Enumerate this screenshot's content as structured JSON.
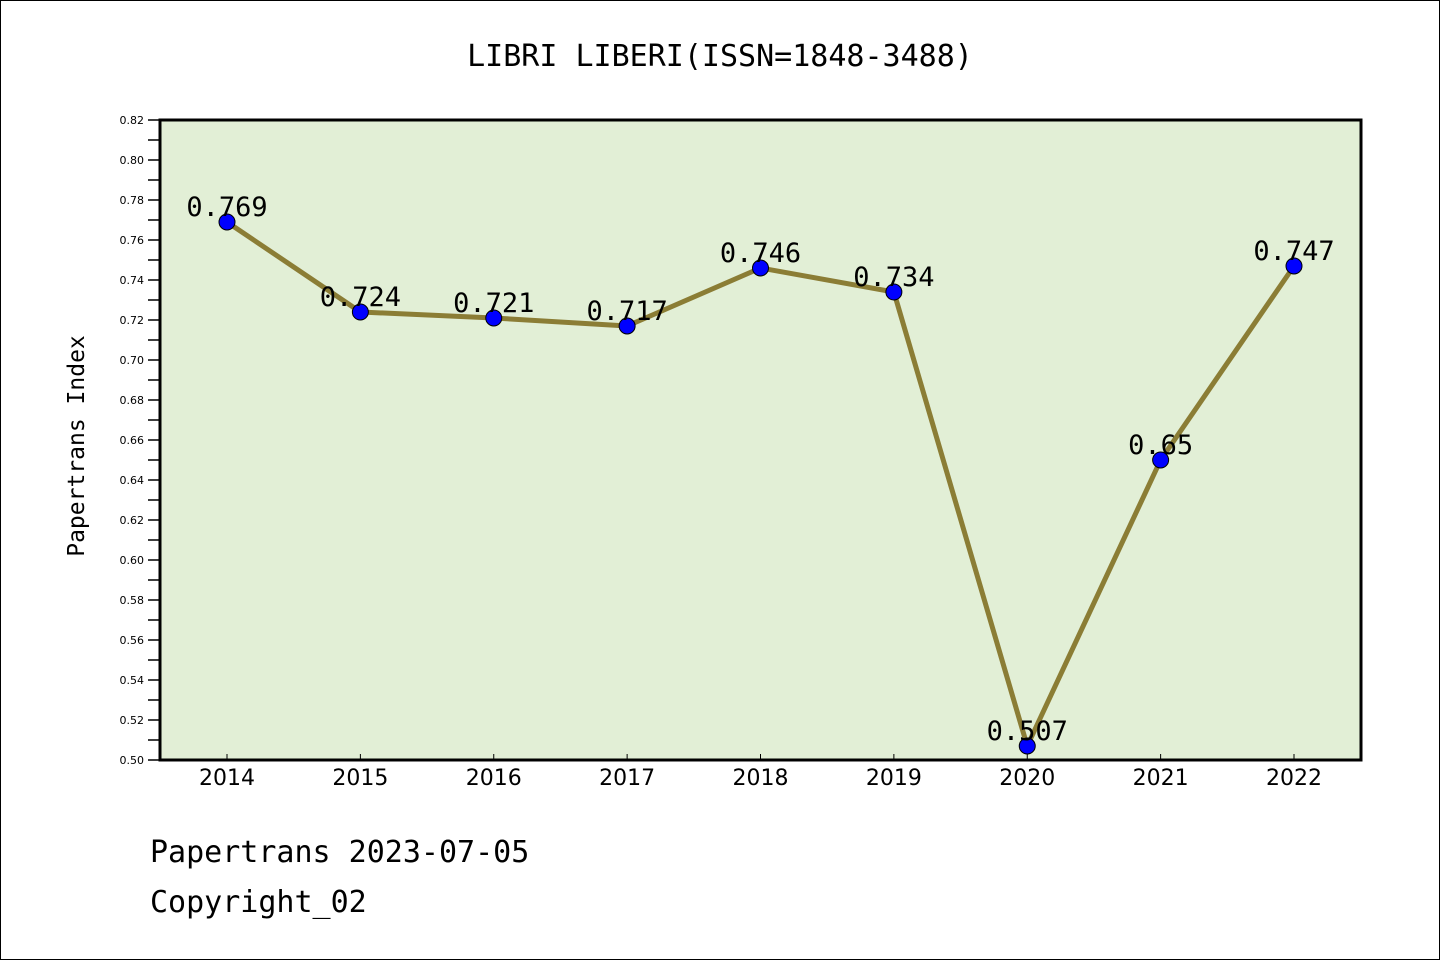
{
  "chart_data": {
    "type": "line",
    "title": "LIBRI LIBERI(ISSN=1848-3488)",
    "xlabel": "",
    "ylabel": "Papertrans Index",
    "categories": [
      "2014",
      "2015",
      "2016",
      "2017",
      "2018",
      "2019",
      "2020",
      "2021",
      "2022"
    ],
    "values": [
      0.769,
      0.724,
      0.721,
      0.717,
      0.746,
      0.734,
      0.507,
      0.65,
      0.747
    ],
    "data_labels": [
      "0.769",
      "0.724",
      "0.721",
      "0.717",
      "0.746",
      "0.734",
      "0.507",
      "0.65",
      "0.747"
    ],
    "ylim": [
      0.5,
      0.82
    ],
    "yticks": [
      "0.50",
      "0.52",
      "0.54",
      "0.56",
      "0.58",
      "0.60",
      "0.62",
      "0.64",
      "0.66",
      "0.68",
      "0.70",
      "0.72",
      "0.74",
      "0.76",
      "0.78",
      "0.80",
      "0.82"
    ],
    "grid": false,
    "colors": {
      "background": "#e2efd6",
      "line": "#8b7d35",
      "marker": "#0000ff"
    }
  },
  "footer": {
    "line1": "Papertrans 2023-07-05",
    "line2": "Copyright_02"
  }
}
